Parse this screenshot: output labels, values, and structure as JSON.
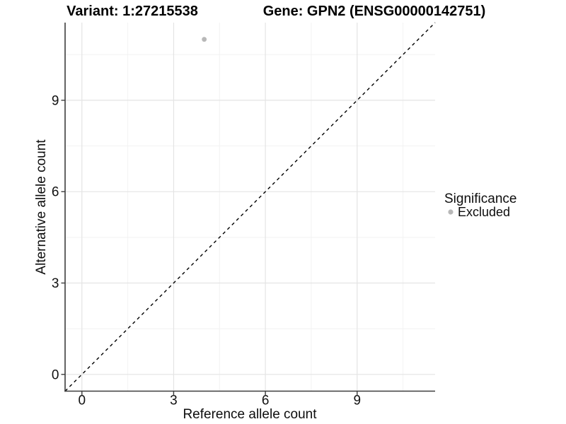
{
  "title": {
    "variant": "Variant: 1:27215538",
    "gene": "Gene: GPN2 (ENSG00000142751)"
  },
  "axes": {
    "x_label": "Reference allele count",
    "y_label": "Alternative allele count"
  },
  "legend": {
    "title": "Significance",
    "items": [
      {
        "label": "Excluded",
        "color": "#b8b8b8"
      }
    ]
  },
  "colors": {
    "background": "#ffffff",
    "grid_major": "#e4e4e4",
    "grid_minor": "#f2f2f2",
    "axis_line": "#3c3c3c",
    "tick_text": "#111111",
    "identity_line": "#000000",
    "point_gray": "#b8b8b8"
  },
  "chart_data": {
    "type": "scatter",
    "title": "Variant: 1:27215538 — Gene: GPN2 (ENSG00000142751)",
    "xlabel": "Reference allele count",
    "ylabel": "Alternative allele count",
    "xlim": [
      -0.55,
      11.55
    ],
    "ylim": [
      -0.55,
      11.55
    ],
    "x_ticks": [
      0,
      3,
      6,
      9
    ],
    "y_ticks": [
      0,
      3,
      6,
      9
    ],
    "minor_grid_step": 1.5,
    "grid": true,
    "legend_position": "right",
    "series": [
      {
        "name": "Excluded",
        "color": "#b8b8b8",
        "points": [
          {
            "x": 4,
            "y": 11
          }
        ]
      }
    ],
    "reference_line": {
      "type": "identity",
      "equation": "y = x",
      "style": "dashed",
      "color": "#000000"
    }
  }
}
